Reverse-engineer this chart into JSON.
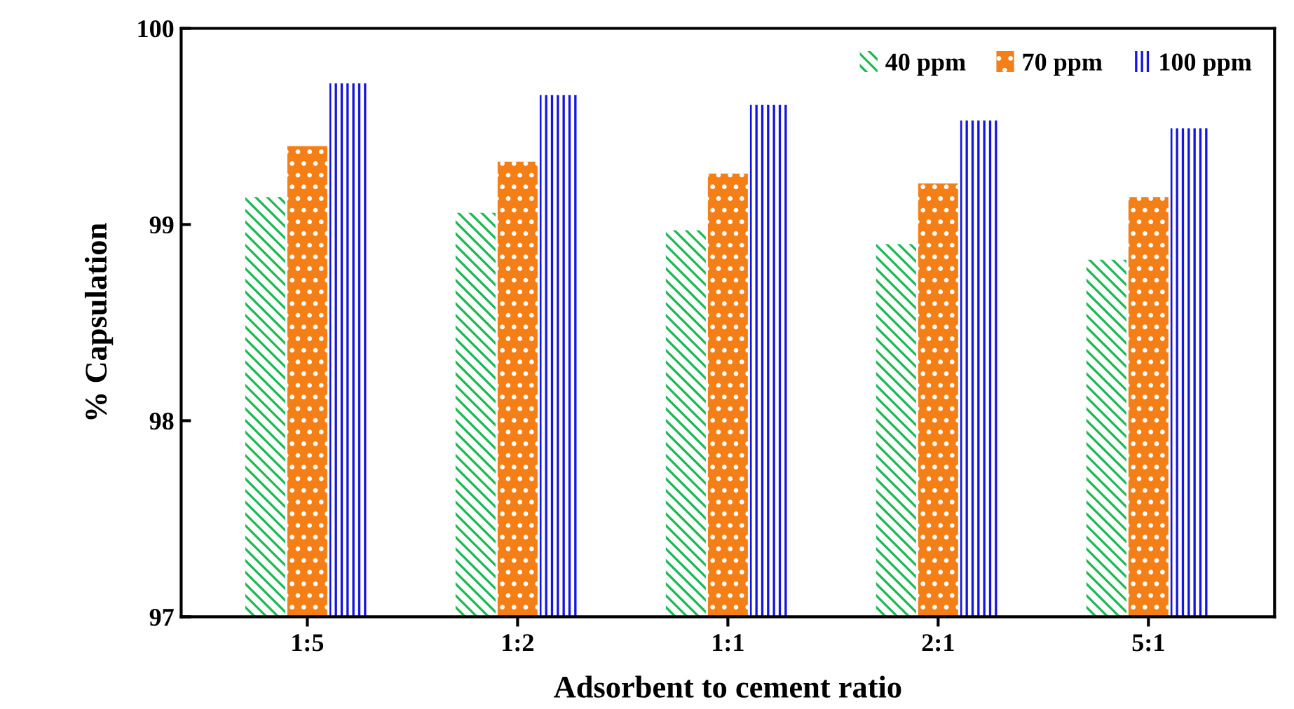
{
  "chart_data": {
    "type": "bar",
    "xlabel": "Adsorbent to cement ratio",
    "ylabel": "% Capsulation",
    "categories": [
      "1:5",
      "1:2",
      "1:1",
      "2:1",
      "5:1"
    ],
    "series": [
      {
        "name": "40 ppm",
        "color": "#1db954",
        "values": [
          99.14,
          99.06,
          98.97,
          98.9,
          98.82
        ]
      },
      {
        "name": "70 ppm",
        "color": "#f57f17",
        "values": [
          99.4,
          99.32,
          99.26,
          99.21,
          99.14
        ]
      },
      {
        "name": "100 ppm",
        "color": "#1515e0",
        "values": [
          99.72,
          99.66,
          99.61,
          99.53,
          99.49
        ]
      }
    ],
    "ylim": [
      97,
      100
    ],
    "yticks": [
      97,
      98,
      99,
      100
    ],
    "grid": false,
    "legend": "top right"
  }
}
